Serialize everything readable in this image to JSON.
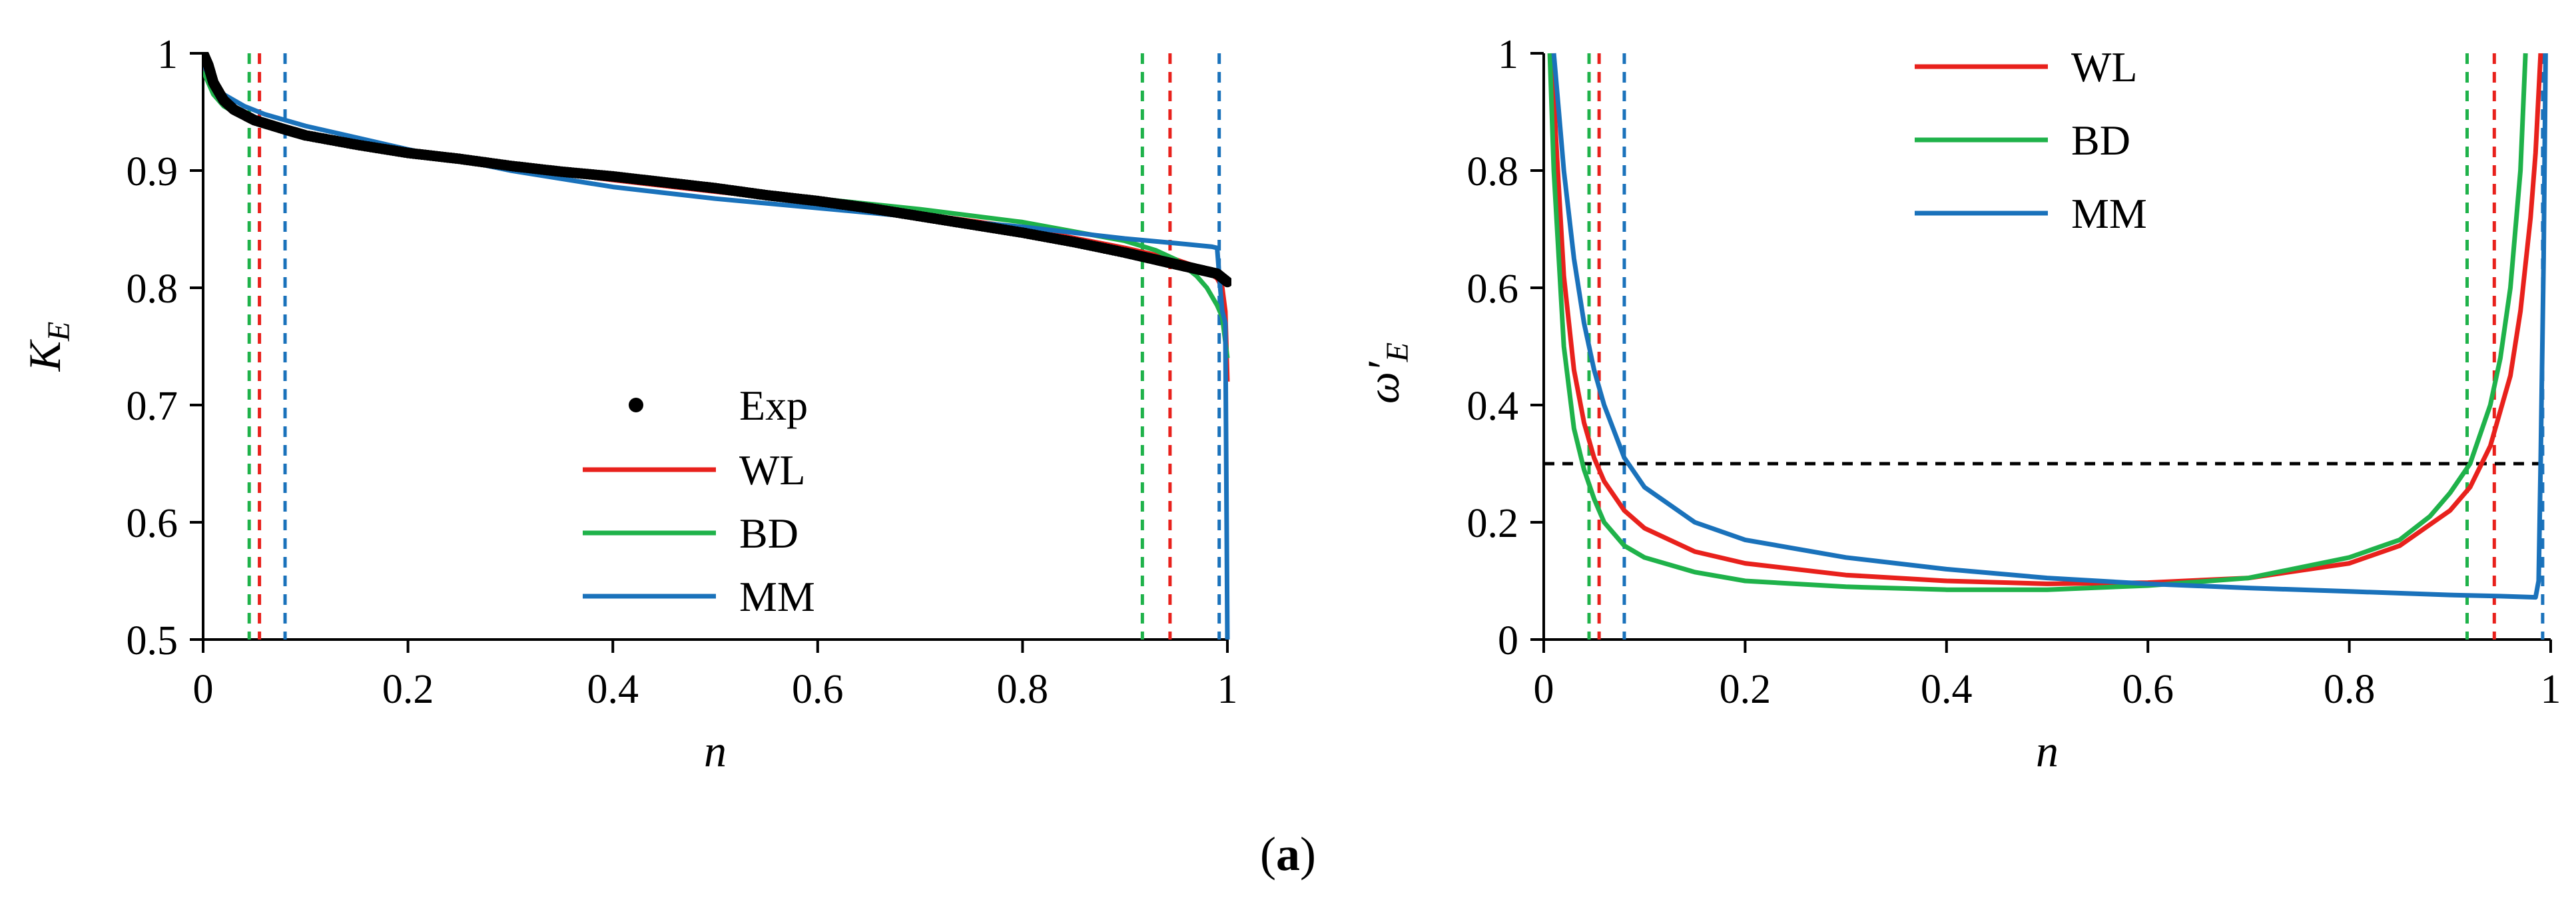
{
  "caption": {
    "open": "(",
    "letter": "a",
    "close": ")"
  },
  "chart_data": [
    {
      "type": "line",
      "xlabel": "n",
      "ylabel": "K",
      "ylabel_sub": "E",
      "xlim": [
        0,
        1
      ],
      "ylim": [
        0.5,
        1
      ],
      "xticks": [
        0,
        0.2,
        0.4,
        0.6,
        0.8,
        1
      ],
      "xtick_labels": [
        "0",
        "0.2",
        "0.4",
        "0.6",
        "0.8",
        "1"
      ],
      "yticks": [
        0.5,
        0.6,
        0.7,
        0.8,
        0.9,
        1
      ],
      "ytick_labels": [
        "0.5",
        "0.6",
        "0.7",
        "0.8",
        "0.9",
        "1"
      ],
      "legend_position": "center-bottom",
      "exp": {
        "name": "Exp",
        "color": "#000000",
        "x": [
          0,
          0.005,
          0.01,
          0.02,
          0.03,
          0.05,
          0.08,
          0.1,
          0.15,
          0.2,
          0.25,
          0.3,
          0.35,
          0.4,
          0.45,
          0.5,
          0.55,
          0.6,
          0.65,
          0.7,
          0.75,
          0.8,
          0.85,
          0.9,
          0.93,
          0.95,
          0.97,
          0.99,
          1.0
        ],
        "y": [
          1.0,
          0.99,
          0.975,
          0.96,
          0.952,
          0.943,
          0.935,
          0.93,
          0.922,
          0.915,
          0.91,
          0.904,
          0.899,
          0.895,
          0.89,
          0.885,
          0.879,
          0.874,
          0.868,
          0.861,
          0.854,
          0.847,
          0.839,
          0.83,
          0.824,
          0.82,
          0.816,
          0.812,
          0.805
        ]
      },
      "series": [
        {
          "name": "WL",
          "color": "#e8211c",
          "x": [
            0,
            0.01,
            0.02,
            0.04,
            0.06,
            0.1,
            0.15,
            0.2,
            0.3,
            0.4,
            0.5,
            0.6,
            0.7,
            0.8,
            0.9,
            0.95,
            0.97,
            0.98,
            0.99,
            0.995,
            0.998,
            1.0
          ],
          "y": [
            0.99,
            0.972,
            0.96,
            0.948,
            0.94,
            0.93,
            0.922,
            0.915,
            0.903,
            0.892,
            0.882,
            0.873,
            0.863,
            0.851,
            0.834,
            0.824,
            0.818,
            0.814,
            0.808,
            0.8,
            0.78,
            0.72
          ]
        },
        {
          "name": "BD",
          "color": "#1fb24a",
          "x": [
            0,
            0.01,
            0.02,
            0.04,
            0.06,
            0.1,
            0.15,
            0.2,
            0.3,
            0.4,
            0.5,
            0.6,
            0.7,
            0.8,
            0.9,
            0.93,
            0.95,
            0.97,
            0.98,
            0.99,
            0.995,
            1.0
          ],
          "y": [
            0.985,
            0.965,
            0.955,
            0.945,
            0.938,
            0.93,
            0.922,
            0.915,
            0.904,
            0.893,
            0.884,
            0.876,
            0.867,
            0.856,
            0.84,
            0.832,
            0.824,
            0.81,
            0.8,
            0.785,
            0.775,
            0.74
          ]
        },
        {
          "name": "MM",
          "color": "#1a72bb",
          "x": [
            0,
            0.01,
            0.02,
            0.04,
            0.06,
            0.1,
            0.15,
            0.2,
            0.3,
            0.4,
            0.5,
            0.6,
            0.7,
            0.8,
            0.9,
            0.95,
            0.985,
            0.99,
            0.993,
            0.995,
            0.998,
            1.0
          ],
          "y": [
            0.99,
            0.975,
            0.965,
            0.955,
            0.948,
            0.938,
            0.928,
            0.918,
            0.9,
            0.886,
            0.876,
            0.868,
            0.86,
            0.852,
            0.842,
            0.838,
            0.835,
            0.834,
            0.8,
            0.78,
            0.77,
            0.5
          ]
        }
      ],
      "vlines": [
        {
          "x": 0.045,
          "color": "#1fb24a"
        },
        {
          "x": 0.055,
          "color": "#e8211c"
        },
        {
          "x": 0.08,
          "color": "#1a72bb"
        },
        {
          "x": 0.917,
          "color": "#1fb24a"
        },
        {
          "x": 0.944,
          "color": "#e8211c"
        },
        {
          "x": 0.992,
          "color": "#1a72bb"
        }
      ]
    },
    {
      "type": "line",
      "xlabel": "n",
      "ylabel": "ω′",
      "ylabel_sub": "E",
      "xlim": [
        0,
        1
      ],
      "ylim": [
        0,
        1
      ],
      "xticks": [
        0,
        0.2,
        0.4,
        0.6,
        0.8,
        1
      ],
      "xtick_labels": [
        "0",
        "0.2",
        "0.4",
        "0.6",
        "0.8",
        "1"
      ],
      "yticks": [
        0,
        0.2,
        0.4,
        0.6,
        0.8,
        1
      ],
      "ytick_labels": [
        "0",
        "0.2",
        "0.4",
        "0.6",
        "0.8",
        "1"
      ],
      "legend_position": "top-center",
      "hline": {
        "y": 0.3,
        "color": "#000000"
      },
      "series": [
        {
          "name": "WL",
          "color": "#e8211c",
          "x": [
            0.008,
            0.012,
            0.02,
            0.03,
            0.04,
            0.05,
            0.06,
            0.08,
            0.1,
            0.15,
            0.2,
            0.3,
            0.4,
            0.5,
            0.6,
            0.7,
            0.8,
            0.85,
            0.9,
            0.92,
            0.94,
            0.96,
            0.97,
            0.98,
            0.985,
            0.99
          ],
          "y": [
            1.0,
            0.86,
            0.62,
            0.46,
            0.37,
            0.31,
            0.27,
            0.22,
            0.19,
            0.15,
            0.13,
            0.11,
            0.1,
            0.095,
            0.097,
            0.105,
            0.13,
            0.16,
            0.22,
            0.26,
            0.33,
            0.45,
            0.56,
            0.72,
            0.83,
            1.0
          ]
        },
        {
          "name": "BD",
          "color": "#1fb24a",
          "x": [
            0.006,
            0.01,
            0.02,
            0.03,
            0.04,
            0.05,
            0.06,
            0.08,
            0.1,
            0.15,
            0.2,
            0.3,
            0.4,
            0.5,
            0.6,
            0.7,
            0.8,
            0.85,
            0.88,
            0.9,
            0.92,
            0.94,
            0.95,
            0.96,
            0.97,
            0.975
          ],
          "y": [
            1.0,
            0.8,
            0.5,
            0.36,
            0.29,
            0.24,
            0.2,
            0.16,
            0.14,
            0.115,
            0.1,
            0.09,
            0.085,
            0.085,
            0.092,
            0.105,
            0.14,
            0.17,
            0.21,
            0.25,
            0.3,
            0.4,
            0.48,
            0.6,
            0.8,
            1.0
          ]
        },
        {
          "name": "MM",
          "color": "#1a72bb",
          "x": [
            0.01,
            0.015,
            0.02,
            0.03,
            0.04,
            0.05,
            0.06,
            0.08,
            0.1,
            0.15,
            0.2,
            0.3,
            0.4,
            0.5,
            0.6,
            0.7,
            0.8,
            0.9,
            0.95,
            0.985,
            0.988,
            0.99,
            0.993,
            0.995
          ],
          "y": [
            1.0,
            0.9,
            0.8,
            0.65,
            0.54,
            0.46,
            0.4,
            0.31,
            0.26,
            0.2,
            0.17,
            0.14,
            0.12,
            0.105,
            0.095,
            0.088,
            0.082,
            0.076,
            0.074,
            0.072,
            0.1,
            0.3,
            0.65,
            1.0
          ]
        }
      ],
      "vlines": [
        {
          "x": 0.045,
          "color": "#1fb24a"
        },
        {
          "x": 0.055,
          "color": "#e8211c"
        },
        {
          "x": 0.08,
          "color": "#1a72bb"
        },
        {
          "x": 0.917,
          "color": "#1fb24a"
        },
        {
          "x": 0.944,
          "color": "#e8211c"
        },
        {
          "x": 0.992,
          "color": "#1a72bb"
        }
      ]
    }
  ]
}
